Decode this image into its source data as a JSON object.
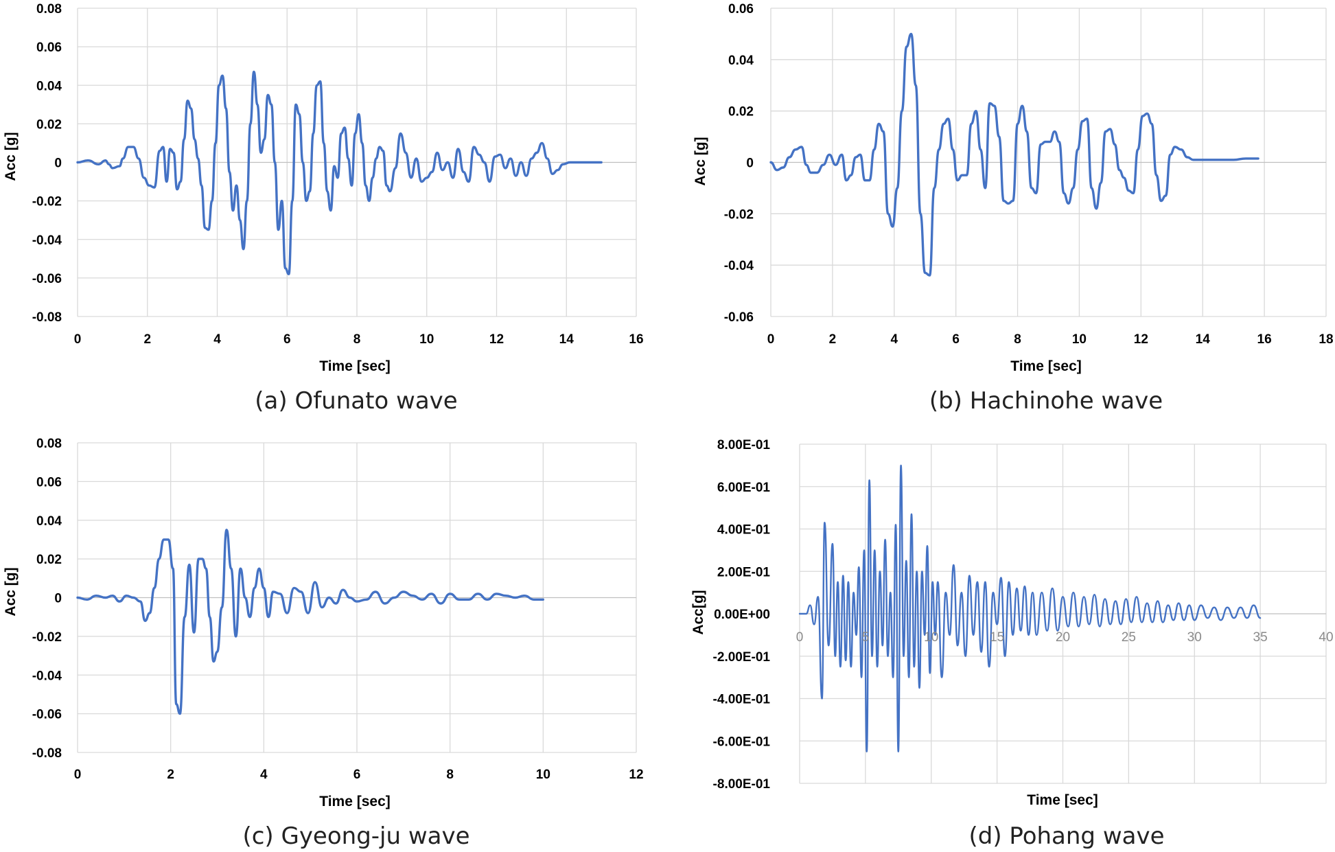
{
  "chart_data": [
    {
      "type": "line",
      "caption": "(a) Ofunato wave",
      "xlabel": "Time [sec]",
      "ylabel": "Acc [g]",
      "xlim": [
        0,
        16
      ],
      "ylim": [
        -0.08,
        0.08
      ],
      "x_ticks": [
        0,
        2,
        4,
        6,
        8,
        10,
        12,
        14,
        16
      ],
      "x_tick_labels": [
        "0",
        "2",
        "4",
        "6",
        "8",
        "10",
        "12",
        "14",
        "16"
      ],
      "y_ticks": [
        -0.08,
        -0.06,
        -0.04,
        -0.02,
        0,
        0.02,
        0.04,
        0.06,
        0.08
      ],
      "y_tick_labels": [
        "-0.08",
        "-0.06",
        "-0.04",
        "-0.02",
        "0",
        "0.02",
        "0.04",
        "0.06",
        "0.08"
      ],
      "color": "#4472c4",
      "series": [
        {
          "name": "Ofunato",
          "x": [
            0,
            0.3,
            0.6,
            0.8,
            0.9,
            1.0,
            1.2,
            1.3,
            1.45,
            1.6,
            1.75,
            1.9,
            2.05,
            2.2,
            2.35,
            2.45,
            2.55,
            2.65,
            2.75,
            2.85,
            2.95,
            3.05,
            3.15,
            3.25,
            3.35,
            3.45,
            3.55,
            3.65,
            3.75,
            3.85,
            3.95,
            4.05,
            4.15,
            4.25,
            4.35,
            4.45,
            4.55,
            4.65,
            4.75,
            4.85,
            4.95,
            5.05,
            5.15,
            5.25,
            5.35,
            5.45,
            5.55,
            5.65,
            5.75,
            5.85,
            5.95,
            6.05,
            6.15,
            6.25,
            6.35,
            6.45,
            6.55,
            6.65,
            6.75,
            6.85,
            6.95,
            7.05,
            7.15,
            7.25,
            7.35,
            7.45,
            7.55,
            7.65,
            7.75,
            7.85,
            7.95,
            8.05,
            8.15,
            8.25,
            8.35,
            8.45,
            8.55,
            8.65,
            8.75,
            8.85,
            8.95,
            9.1,
            9.25,
            9.4,
            9.55,
            9.7,
            9.85,
            10.0,
            10.15,
            10.3,
            10.45,
            10.6,
            10.75,
            10.9,
            11.05,
            11.2,
            11.35,
            11.5,
            11.65,
            11.8,
            11.95,
            12.1,
            12.25,
            12.4,
            12.55,
            12.7,
            12.85,
            13.0,
            13.15,
            13.3,
            13.45,
            13.6,
            13.75,
            13.9,
            14.1,
            14.4,
            14.7,
            15.0
          ],
          "values": [
            0.0,
            0.001,
            -0.001,
            0.001,
            -0.001,
            -0.003,
            -0.002,
            0.002,
            0.008,
            0.008,
            0.002,
            -0.008,
            -0.012,
            -0.013,
            0.006,
            0.008,
            -0.01,
            0.007,
            0.005,
            -0.014,
            -0.01,
            0.012,
            0.032,
            0.028,
            0.012,
            0.002,
            -0.012,
            -0.034,
            -0.035,
            -0.02,
            0.01,
            0.04,
            0.045,
            0.028,
            -0.005,
            -0.025,
            -0.012,
            -0.03,
            -0.045,
            -0.02,
            0.02,
            0.047,
            0.03,
            0.005,
            0.012,
            0.035,
            0.03,
            0.0,
            -0.035,
            -0.02,
            -0.055,
            -0.058,
            -0.02,
            0.03,
            0.025,
            0.0,
            -0.02,
            -0.015,
            0.015,
            0.04,
            0.042,
            0.01,
            -0.015,
            -0.025,
            -0.002,
            -0.008,
            0.015,
            0.018,
            0.002,
            -0.012,
            0.015,
            0.025,
            0.01,
            -0.012,
            -0.02,
            -0.008,
            0.002,
            0.008,
            0.006,
            -0.012,
            -0.015,
            -0.003,
            0.015,
            0.005,
            -0.008,
            0.002,
            -0.01,
            -0.008,
            -0.005,
            0.005,
            -0.004,
            0.0,
            -0.008,
            0.007,
            -0.005,
            -0.01,
            0.008,
            0.004,
            0.0,
            -0.01,
            0.003,
            0.004,
            -0.003,
            0.002,
            -0.007,
            0.0,
            -0.007,
            0.002,
            0.005,
            0.01,
            0.002,
            -0.006,
            -0.004,
            -0.001,
            0.0,
            0.0,
            0.0,
            0.0
          ]
        }
      ]
    },
    {
      "type": "line",
      "caption": "(b) Hachinohe wave",
      "xlabel": "Time [sec]",
      "ylabel": "Acc [g]",
      "xlim": [
        0,
        18
      ],
      "ylim": [
        -0.06,
        0.06
      ],
      "x_ticks": [
        0,
        2,
        4,
        6,
        8,
        10,
        12,
        14,
        16,
        18
      ],
      "x_tick_labels": [
        "0",
        "2",
        "4",
        "6",
        "8",
        "10",
        "12",
        "14",
        "16",
        "18"
      ],
      "y_ticks": [
        -0.06,
        -0.04,
        -0.02,
        0,
        0.02,
        0.04,
        0.06
      ],
      "y_tick_labels": [
        "-0.06",
        "-0.04",
        "-0.02",
        "0",
        "0.02",
        "0.04",
        "0.06"
      ],
      "color": "#4472c4",
      "series": [
        {
          "name": "Hachinohe",
          "x": [
            0,
            0.2,
            0.4,
            0.6,
            0.8,
            1.0,
            1.15,
            1.3,
            1.5,
            1.7,
            1.9,
            2.1,
            2.3,
            2.45,
            2.6,
            2.75,
            2.9,
            3.05,
            3.2,
            3.35,
            3.5,
            3.65,
            3.8,
            3.95,
            4.1,
            4.25,
            4.4,
            4.55,
            4.7,
            4.85,
            5.0,
            5.15,
            5.3,
            5.45,
            5.6,
            5.75,
            5.9,
            6.05,
            6.2,
            6.35,
            6.5,
            6.65,
            6.8,
            6.95,
            7.1,
            7.25,
            7.4,
            7.55,
            7.7,
            7.85,
            8.0,
            8.15,
            8.3,
            8.45,
            8.6,
            8.75,
            8.9,
            9.05,
            9.2,
            9.35,
            9.5,
            9.65,
            9.8,
            9.95,
            10.1,
            10.25,
            10.4,
            10.55,
            10.7,
            10.85,
            11.0,
            11.15,
            11.3,
            11.45,
            11.6,
            11.75,
            11.9,
            12.05,
            12.2,
            12.35,
            12.5,
            12.65,
            12.8,
            12.95,
            13.1,
            13.3,
            13.5,
            13.7,
            13.9,
            14.2,
            14.6,
            15.0,
            15.4,
            15.8
          ],
          "values": [
            0.0,
            -0.003,
            -0.002,
            0.002,
            0.005,
            0.006,
            -0.001,
            -0.004,
            -0.004,
            -0.001,
            0.003,
            -0.001,
            0.003,
            -0.007,
            -0.005,
            0.002,
            0.003,
            -0.007,
            -0.007,
            0.005,
            0.015,
            0.012,
            -0.02,
            -0.025,
            -0.01,
            0.02,
            0.045,
            0.05,
            0.03,
            -0.02,
            -0.043,
            -0.044,
            -0.01,
            0.005,
            0.015,
            0.017,
            0.005,
            -0.007,
            -0.005,
            -0.005,
            0.015,
            0.02,
            0.005,
            -0.01,
            0.023,
            0.022,
            0.01,
            -0.015,
            -0.016,
            -0.015,
            0.015,
            0.022,
            0.012,
            -0.01,
            -0.012,
            0.007,
            0.008,
            0.008,
            0.012,
            0.008,
            -0.012,
            -0.016,
            -0.01,
            0.005,
            0.016,
            0.017,
            -0.01,
            -0.018,
            -0.008,
            0.012,
            0.013,
            0.007,
            -0.003,
            -0.006,
            -0.011,
            -0.012,
            0.005,
            0.018,
            0.019,
            0.015,
            -0.005,
            -0.015,
            -0.013,
            0.003,
            0.006,
            0.005,
            0.002,
            0.001,
            0.001,
            0.001,
            0.001,
            0.001,
            0.0015,
            0.0015
          ]
        }
      ]
    },
    {
      "type": "line",
      "caption": "(c) Gyeong-ju wave",
      "xlabel": "Time [sec]",
      "ylabel": "Acc [g]",
      "xlim": [
        0,
        12
      ],
      "ylim": [
        -0.08,
        0.08
      ],
      "x_ticks": [
        0,
        2,
        4,
        6,
        8,
        10,
        12
      ],
      "x_tick_labels": [
        "0",
        "2",
        "4",
        "6",
        "8",
        "10",
        "12"
      ],
      "y_ticks": [
        -0.08,
        -0.06,
        -0.04,
        -0.02,
        0,
        0.02,
        0.04,
        0.06,
        0.08
      ],
      "y_tick_labels": [
        "-0.08",
        "-0.06",
        "-0.04",
        "-0.02",
        "0",
        "0.02",
        "0.04",
        "0.06",
        "0.08"
      ],
      "color": "#4472c4",
      "series": [
        {
          "name": "Gyeong-ju",
          "x": [
            0,
            0.2,
            0.4,
            0.6,
            0.75,
            0.9,
            1.05,
            1.2,
            1.35,
            1.45,
            1.55,
            1.65,
            1.75,
            1.85,
            1.95,
            2.05,
            2.12,
            2.2,
            2.3,
            2.4,
            2.5,
            2.6,
            2.68,
            2.76,
            2.84,
            2.92,
            3.0,
            3.1,
            3.2,
            3.3,
            3.4,
            3.5,
            3.6,
            3.7,
            3.8,
            3.9,
            4.0,
            4.1,
            4.2,
            4.35,
            4.5,
            4.65,
            4.8,
            4.95,
            5.1,
            5.25,
            5.4,
            5.55,
            5.7,
            5.85,
            6.0,
            6.2,
            6.4,
            6.6,
            6.8,
            7.0,
            7.2,
            7.4,
            7.6,
            7.8,
            8.0,
            8.2,
            8.4,
            8.6,
            8.8,
            9.0,
            9.2,
            9.4,
            9.6,
            9.8,
            10.0
          ],
          "values": [
            0.0,
            -0.001,
            0.001,
            0.0,
            0.001,
            -0.002,
            0.001,
            0.0,
            -0.002,
            -0.012,
            -0.008,
            0.005,
            0.02,
            0.03,
            0.03,
            0.015,
            -0.055,
            -0.06,
            -0.01,
            0.017,
            -0.018,
            0.02,
            0.02,
            0.015,
            -0.01,
            -0.033,
            -0.028,
            -0.005,
            0.035,
            0.015,
            -0.02,
            0.015,
            0.0,
            -0.01,
            0.005,
            0.015,
            0.005,
            -0.01,
            0.003,
            0.002,
            -0.008,
            0.005,
            0.003,
            -0.008,
            0.008,
            -0.005,
            0.0,
            -0.003,
            0.004,
            0.0,
            -0.002,
            -0.001,
            0.003,
            -0.003,
            0.0,
            0.003,
            0.001,
            -0.001,
            0.002,
            -0.003,
            0.002,
            -0.001,
            -0.001,
            0.002,
            -0.001,
            0.002,
            0.001,
            0.0,
            0.001,
            -0.001,
            -0.001
          ]
        }
      ]
    },
    {
      "type": "line",
      "caption": "(d) Pohang wave",
      "xlabel": "Time [sec]",
      "ylabel": "Acc[g]",
      "xlim": [
        0,
        40
      ],
      "ylim": [
        -0.8,
        0.8
      ],
      "x_ticks": [
        0,
        5,
        10,
        15,
        20,
        25,
        30,
        35,
        40
      ],
      "x_tick_labels": [
        "0",
        "5",
        "10",
        "15",
        "20",
        "25",
        "30",
        "35",
        "40"
      ],
      "y_ticks": [
        -0.8,
        -0.6,
        -0.4,
        -0.2,
        0,
        0.2,
        0.4,
        0.6,
        0.8
      ],
      "y_tick_labels": [
        "-8.00E-01",
        "-6.00E-01",
        "-4.00E-01",
        "-2.00E-01",
        "0.00E+00",
        "2.00E-01",
        "4.00E-01",
        "6.00E-01",
        "8.00E-01"
      ],
      "color": "#4472c4",
      "series": [
        {
          "name": "Pohang",
          "x": [
            0,
            0.5,
            0.8,
            1.1,
            1.4,
            1.7,
            1.9,
            2.2,
            2.5,
            2.7,
            2.9,
            3.1,
            3.3,
            3.5,
            3.7,
            3.9,
            4.1,
            4.3,
            4.5,
            4.7,
            4.9,
            5.1,
            5.3,
            5.5,
            5.7,
            5.9,
            6.1,
            6.3,
            6.5,
            6.7,
            6.9,
            7.1,
            7.3,
            7.5,
            7.7,
            7.9,
            8.1,
            8.3,
            8.5,
            8.7,
            8.9,
            9.1,
            9.3,
            9.5,
            9.7,
            9.9,
            10.1,
            10.3,
            10.5,
            10.8,
            11.1,
            11.4,
            11.7,
            12.0,
            12.3,
            12.6,
            12.9,
            13.2,
            13.5,
            13.8,
            14.1,
            14.4,
            14.7,
            15.0,
            15.3,
            15.6,
            15.9,
            16.2,
            16.5,
            16.8,
            17.1,
            17.4,
            17.7,
            18.0,
            18.4,
            18.8,
            19.2,
            19.6,
            20.0,
            20.4,
            20.8,
            21.2,
            21.6,
            22.0,
            22.4,
            22.8,
            23.2,
            23.6,
            24.0,
            24.4,
            24.8,
            25.2,
            25.6,
            26.0,
            26.4,
            26.8,
            27.2,
            27.6,
            28.0,
            28.4,
            28.8,
            29.2,
            29.6,
            30.0,
            30.5,
            31.0,
            31.5,
            32.0,
            32.5,
            33.0,
            33.5,
            34.0,
            34.5,
            35.0
          ],
          "values": [
            0.0,
            0.0,
            0.04,
            -0.05,
            0.08,
            -0.4,
            0.43,
            -0.15,
            0.33,
            -0.2,
            0.15,
            -0.25,
            0.18,
            -0.22,
            0.15,
            -0.25,
            0.1,
            -0.1,
            0.22,
            -0.3,
            0.3,
            -0.65,
            0.63,
            -0.2,
            0.3,
            -0.25,
            0.2,
            -0.15,
            0.35,
            -0.2,
            0.1,
            -0.3,
            0.42,
            -0.65,
            0.7,
            -0.2,
            0.25,
            -0.3,
            0.47,
            -0.25,
            0.2,
            -0.35,
            0.2,
            -0.1,
            0.32,
            -0.28,
            0.15,
            -0.1,
            0.15,
            -0.3,
            0.1,
            -0.1,
            0.23,
            -0.15,
            0.1,
            -0.2,
            0.18,
            -0.1,
            0.15,
            -0.18,
            0.15,
            -0.25,
            0.1,
            -0.05,
            0.17,
            -0.2,
            0.15,
            -0.1,
            0.12,
            -0.08,
            0.13,
            -0.1,
            0.1,
            -0.1,
            0.1,
            -0.08,
            0.12,
            -0.08,
            0.08,
            -0.06,
            0.1,
            -0.06,
            0.08,
            -0.05,
            0.09,
            -0.06,
            0.07,
            -0.05,
            0.06,
            -0.05,
            0.07,
            -0.04,
            0.08,
            -0.04,
            0.05,
            -0.04,
            0.06,
            -0.04,
            0.04,
            -0.03,
            0.05,
            -0.03,
            0.04,
            -0.03,
            0.04,
            -0.02,
            0.03,
            -0.03,
            0.03,
            -0.02,
            0.03,
            -0.02,
            0.04,
            -0.02
          ]
        }
      ]
    }
  ]
}
